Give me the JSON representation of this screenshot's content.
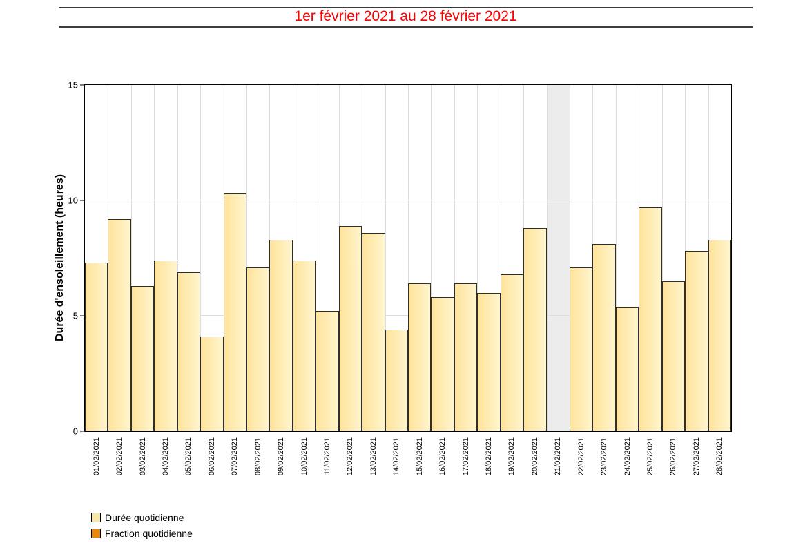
{
  "header": {
    "title": "1er février 2021 au 28 février 2021",
    "title_color": "#ff0000"
  },
  "chart_data": {
    "type": "bar",
    "title": "1er février 2021 au 28 février 2021",
    "xlabel": "",
    "ylabel": "Durée d'ensoleillement (heures)",
    "ylim": [
      0,
      15
    ],
    "yticks": [
      0,
      5,
      10,
      15
    ],
    "grid": true,
    "legend_position": "bottom-left",
    "categories": [
      "01/02/2021",
      "02/02/2021",
      "03/02/2021",
      "04/02/2021",
      "05/02/2021",
      "06/02/2021",
      "07/02/2021",
      "08/02/2021",
      "09/02/2021",
      "10/02/2021",
      "11/02/2021",
      "12/02/2021",
      "13/02/2021",
      "14/02/2021",
      "15/02/2021",
      "16/02/2021",
      "17/02/2021",
      "18/02/2021",
      "19/02/2021",
      "20/02/2021",
      "21/02/2021",
      "22/02/2021",
      "23/02/2021",
      "24/02/2021",
      "25/02/2021",
      "26/02/2021",
      "27/02/2021",
      "28/02/2021"
    ],
    "series": [
      {
        "name": "Durée quotidienne",
        "color": "#f8e7a6",
        "values": [
          7.3,
          9.2,
          6.3,
          7.4,
          6.9,
          4.1,
          10.3,
          7.1,
          8.3,
          7.4,
          5.2,
          8.9,
          8.6,
          4.4,
          6.4,
          5.8,
          6.4,
          6.0,
          6.8,
          8.8,
          null,
          7.1,
          8.1,
          5.4,
          9.7,
          6.5,
          7.8,
          8.3
        ]
      },
      {
        "name": "Fraction quotidienne",
        "color": "#e8880a",
        "values": []
      }
    ],
    "missing_categories": [
      "21/02/2021"
    ]
  },
  "colors": {
    "bar_gradient_left": "#ffe39b",
    "bar_gradient_right": "#fff5cd",
    "bar_border": "#2e2e2e",
    "gridline": "#dcdcdc",
    "missing_band": "#ececec",
    "axis_frame": "#000000",
    "title_red": "#ff0000"
  }
}
